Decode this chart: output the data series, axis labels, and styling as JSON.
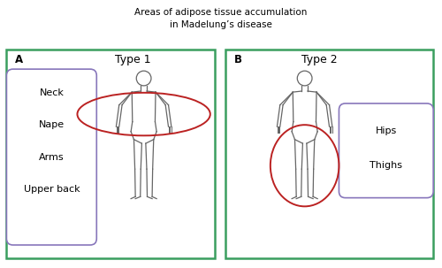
{
  "title_line1": "Areas of adipose tissue accumulation",
  "title_line2": "in Madelung’s disease",
  "panel_a_label": "A",
  "panel_b_label": "B",
  "type1_label": "Type 1",
  "type2_label": "Type 2",
  "type1_items": [
    "Neck",
    "Nape",
    "Arms",
    "Upper back"
  ],
  "type2_items": [
    "Hips",
    "Thighs"
  ],
  "panel_border_color": "#3a9e5f",
  "box_border_color": "#8877bb",
  "ellipse_color": "#bb2222",
  "title_fontsize": 7.5,
  "label_fontsize": 8.5,
  "type_fontsize": 9,
  "item_fontsize": 8,
  "body_color": "#666666",
  "bg_color": "#ffffff"
}
